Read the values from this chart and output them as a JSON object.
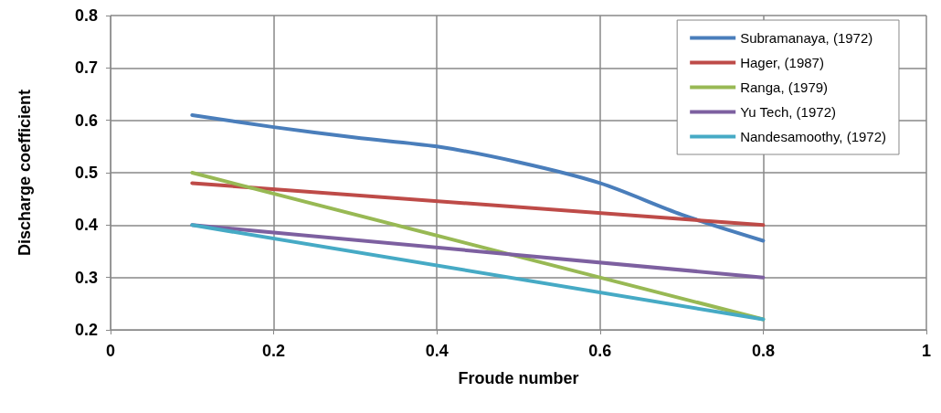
{
  "chart_data": {
    "type": "line",
    "xlabel": "Froude number",
    "ylabel": "Discharge coefficient",
    "xlim": [
      0,
      1
    ],
    "xticks": [
      0,
      0.2,
      0.4,
      0.6,
      0.8,
      1
    ],
    "ylim": [
      0.2,
      0.8
    ],
    "yticks": [
      0.2,
      0.3,
      0.4,
      0.5,
      0.6,
      0.7,
      0.8
    ],
    "grid": true,
    "legend": "top right",
    "marker": "none",
    "line_style": "solid",
    "series": [
      {
        "name": "Subramanaya, (1972)",
        "color": "#4a7ebb",
        "x": [
          0.1,
          0.2,
          0.3,
          0.4,
          0.5,
          0.6,
          0.7,
          0.8
        ],
        "values": [
          0.61,
          0.587,
          0.567,
          0.55,
          0.52,
          0.48,
          0.42,
          0.37
        ]
      },
      {
        "name": "Hager, (1987)",
        "color": "#be4b48",
        "x": [
          0.1,
          0.8
        ],
        "values": [
          0.48,
          0.4
        ]
      },
      {
        "name": "Ranga, (1979)",
        "color": "#98b954",
        "x": [
          0.1,
          0.8
        ],
        "values": [
          0.5,
          0.22
        ]
      },
      {
        "name": "Yu Tech, (1972)",
        "color": "#7d60a0",
        "x": [
          0.1,
          0.8
        ],
        "values": [
          0.4,
          0.3
        ]
      },
      {
        "name": "Nandesamoothy, (1972)",
        "color": "#46aac5",
        "x": [
          0.1,
          0.8
        ],
        "values": [
          0.4,
          0.22
        ]
      }
    ]
  }
}
